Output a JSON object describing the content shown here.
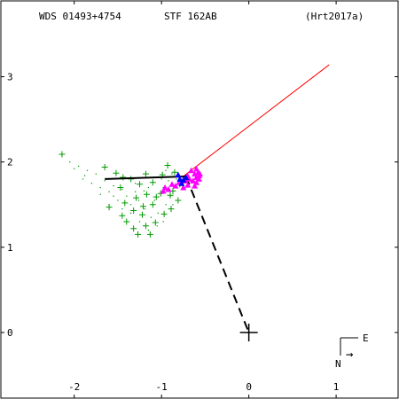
{
  "header": {
    "wds": "WDS 01493+4754",
    "discoverer": "STF 162AB",
    "reference": "(Hrt2017a)"
  },
  "compass": {
    "east": "E",
    "north": "N",
    "arrow": "→"
  },
  "colors": {
    "observations": "#009900",
    "red_line": "#ff0000",
    "orbit": "#000000",
    "magenta_points": "#ff00ff",
    "blue_points": "#0000ff"
  },
  "chart_data": {
    "type": "scatter",
    "title": "",
    "xlabel": "",
    "ylabel": "",
    "xlim": [
      -2.85,
      1.72
    ],
    "ylim": [
      -0.78,
      3.9
    ],
    "x_ticks": [
      -2,
      -1,
      0,
      1
    ],
    "y_ticks": [
      0,
      1,
      2,
      3
    ],
    "x_tick_labels": [
      "-2",
      "-1",
      "0",
      "1"
    ],
    "y_tick_labels": [
      "0",
      "1",
      "2",
      "3"
    ],
    "primary_star": [
      0,
      0
    ],
    "orbit_arc": [
      [
        -1.65,
        1.8
      ],
      [
        -0.72,
        1.83
      ]
    ],
    "periastron_line": [
      [
        -0.72,
        1.83
      ],
      [
        0,
        0
      ]
    ],
    "red_line": [
      [
        -0.74,
        1.84
      ],
      [
        0.92,
        3.14
      ]
    ],
    "green_plus": [
      [
        -2.14,
        2.09
      ],
      [
        -1.65,
        1.94
      ],
      [
        -1.52,
        1.87
      ],
      [
        -1.44,
        1.82
      ],
      [
        -1.35,
        1.8
      ],
      [
        -1.18,
        1.86
      ],
      [
        -0.93,
        1.96
      ],
      [
        -0.85,
        1.88
      ],
      [
        -1.47,
        1.7
      ],
      [
        -1.25,
        1.74
      ],
      [
        -1.1,
        1.76
      ],
      [
        -0.99,
        1.85
      ],
      [
        -0.87,
        1.66
      ],
      [
        -1.29,
        1.58
      ],
      [
        -1.01,
        1.63
      ],
      [
        -0.79,
        1.74
      ],
      [
        -1.42,
        1.52
      ],
      [
        -1.21,
        1.48
      ],
      [
        -1.06,
        1.59
      ],
      [
        -0.9,
        1.61
      ],
      [
        -1.6,
        1.47
      ],
      [
        -1.32,
        1.43
      ],
      [
        -1.1,
        1.5
      ],
      [
        -1.4,
        1.3
      ],
      [
        -1.22,
        1.38
      ],
      [
        -1.32,
        1.22
      ],
      [
        -1.18,
        1.25
      ],
      [
        -1.27,
        1.15
      ],
      [
        -1.13,
        1.15
      ],
      [
        -1.07,
        1.29
      ],
      [
        -0.97,
        1.39
      ],
      [
        -0.89,
        1.45
      ],
      [
        -0.81,
        1.55
      ],
      [
        -1.45,
        1.37
      ],
      [
        -1.17,
        1.62
      ]
    ],
    "green_dots": [
      [
        -2.05,
        2.0
      ],
      [
        -1.95,
        1.95
      ],
      [
        -1.85,
        1.9
      ],
      [
        -1.75,
        1.86
      ],
      [
        -1.9,
        1.8
      ],
      [
        -1.8,
        1.75
      ],
      [
        -1.7,
        1.7
      ],
      [
        -1.6,
        1.65
      ],
      [
        -1.55,
        1.6
      ],
      [
        -1.5,
        1.55
      ],
      [
        -1.4,
        1.6
      ],
      [
        -1.35,
        1.5
      ],
      [
        -1.3,
        1.65
      ],
      [
        -1.26,
        1.55
      ],
      [
        -1.19,
        1.45
      ],
      [
        -1.15,
        1.7
      ],
      [
        -1.08,
        1.55
      ],
      [
        -1.04,
        1.4
      ],
      [
        -0.98,
        1.7
      ],
      [
        -0.95,
        1.5
      ],
      [
        -0.92,
        1.78
      ],
      [
        -0.9,
        1.6
      ],
      [
        -0.87,
        1.5
      ],
      [
        -0.85,
        1.7
      ],
      [
        -0.83,
        1.8
      ],
      [
        -1.25,
        1.3
      ],
      [
        -1.12,
        1.35
      ],
      [
        -1.35,
        1.4
      ],
      [
        -1.45,
        1.45
      ],
      [
        -1.6,
        1.5
      ],
      [
        -1.7,
        1.62
      ],
      [
        -1.65,
        1.78
      ],
      [
        -1.55,
        1.72
      ],
      [
        -1.0,
        1.8
      ],
      [
        -1.1,
        1.82
      ],
      [
        -1.2,
        1.66
      ],
      [
        -0.88,
        1.86
      ],
      [
        -0.95,
        1.9
      ],
      [
        -1.3,
        1.75
      ],
      [
        -1.45,
        1.68
      ],
      [
        -1.15,
        1.2
      ],
      [
        -1.05,
        1.25
      ],
      [
        -0.98,
        1.3
      ],
      [
        -2.0,
        1.92
      ],
      [
        -1.88,
        1.84
      ]
    ],
    "magenta_points": [
      [
        -0.6,
        1.92
      ],
      [
        -0.58,
        1.88
      ],
      [
        -0.57,
        1.84
      ],
      [
        -0.57,
        1.8
      ],
      [
        -0.6,
        1.76
      ],
      [
        -0.64,
        1.78
      ],
      [
        -0.68,
        1.8
      ],
      [
        -0.62,
        1.86
      ],
      [
        -0.66,
        1.9
      ],
      [
        -0.7,
        1.84
      ],
      [
        -0.73,
        1.78
      ],
      [
        -0.7,
        1.73
      ],
      [
        -0.62,
        1.72
      ],
      [
        -0.75,
        1.7
      ],
      [
        -0.8,
        1.76
      ],
      [
        -0.84,
        1.72
      ],
      [
        -0.88,
        1.74
      ],
      [
        -0.92,
        1.68
      ],
      [
        -0.96,
        1.7
      ],
      [
        -0.98,
        1.66
      ],
      [
        -0.56,
        1.86
      ],
      [
        -0.6,
        1.82
      ]
    ],
    "blue_points": [
      [
        -0.79,
        1.8
      ],
      [
        -0.75,
        1.79
      ],
      [
        -0.72,
        1.82
      ],
      [
        -0.77,
        1.75
      ],
      [
        -0.81,
        1.85
      ]
    ]
  }
}
